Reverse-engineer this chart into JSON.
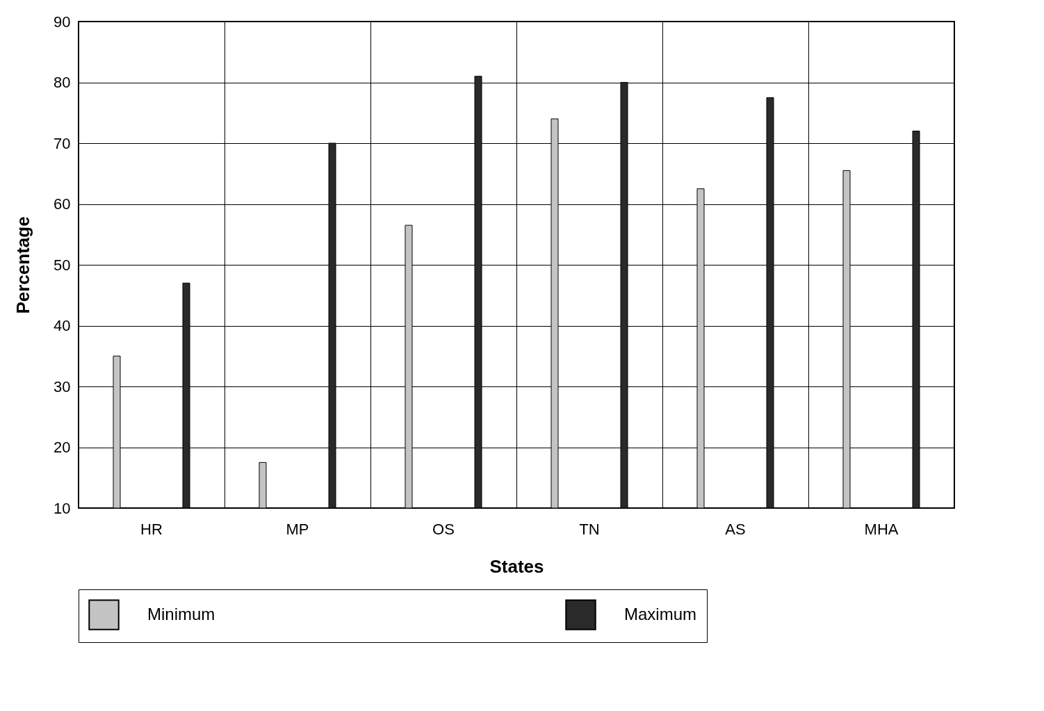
{
  "chart_data": {
    "type": "bar",
    "xlabel": "States",
    "ylabel": "Percentage",
    "categories": [
      "HR",
      "MP",
      "OS",
      "TN",
      "AS",
      "MHA"
    ],
    "series": [
      {
        "name": "Minimum",
        "color": "#c4c4c4",
        "values": [
          35,
          17.5,
          56.5,
          74,
          62.5,
          65.5
        ]
      },
      {
        "name": "Maximum",
        "color": "#2a2a2a",
        "values": [
          47,
          70,
          81,
          80,
          77.5,
          72
        ]
      }
    ],
    "ylim": [
      10,
      90
    ],
    "yticks": [
      10,
      20,
      30,
      40,
      50,
      60,
      70,
      80,
      90
    ],
    "grid": true,
    "legend": "bottom"
  }
}
